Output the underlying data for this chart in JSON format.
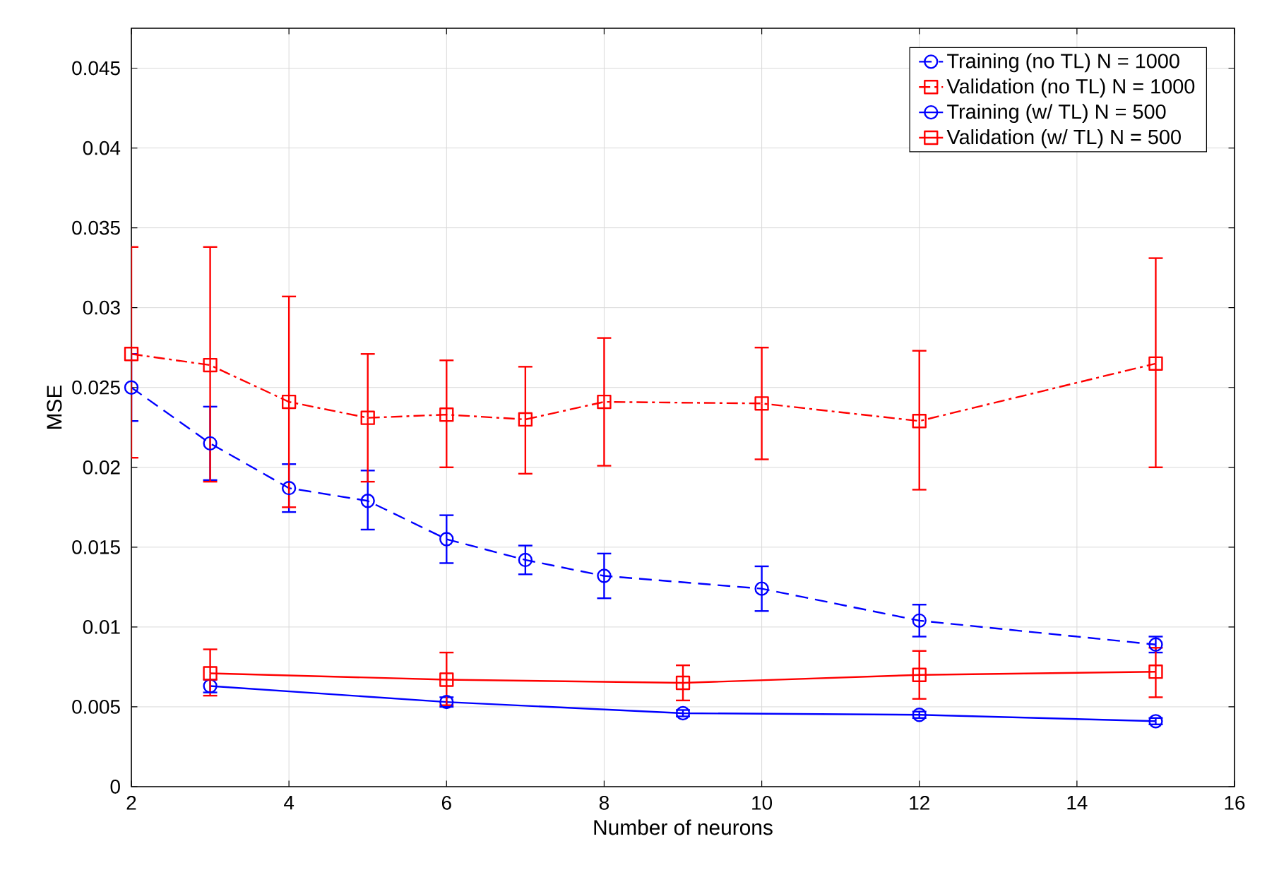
{
  "chart_data": {
    "type": "line",
    "xlabel": "Number of neurons",
    "ylabel": "MSE",
    "xlim": [
      2,
      16
    ],
    "xticks": [
      2,
      4,
      6,
      8,
      10,
      12,
      14,
      16
    ],
    "ylim": [
      0,
      0.0475
    ],
    "yticks": [
      0,
      0.005,
      0.01,
      0.015,
      0.02,
      0.025,
      0.03,
      0.035,
      0.04,
      0.045
    ],
    "grid": true,
    "legend": "top right",
    "series": [
      {
        "name": "Training (no TL) N = 1000",
        "color": "#0000ff",
        "marker": "circle",
        "line_style": "dashed",
        "x": [
          2,
          3,
          4,
          5,
          6,
          7,
          8,
          10,
          12,
          15
        ],
        "values": [
          0.025,
          0.0215,
          0.0187,
          0.0179,
          0.0155,
          0.0142,
          0.0132,
          0.0124,
          0.0104,
          0.0089
        ],
        "errors": [
          [
            0.0229,
            0.0271
          ],
          [
            0.0192,
            0.0238
          ],
          [
            0.0172,
            0.0202
          ],
          [
            0.0161,
            0.0198
          ],
          [
            0.014,
            0.017
          ],
          [
            0.0133,
            0.0151
          ],
          [
            0.0118,
            0.0146
          ],
          [
            0.011,
            0.0138
          ],
          [
            0.0094,
            0.0114
          ],
          [
            0.0084,
            0.0094
          ]
        ]
      },
      {
        "name": "Validation (no TL) N = 1000",
        "color": "#ff0000",
        "marker": "square",
        "line_style": "dashdot",
        "x": [
          2,
          3,
          4,
          5,
          6,
          7,
          8,
          10,
          12,
          15
        ],
        "values": [
          0.0271,
          0.0264,
          0.0241,
          0.0231,
          0.0233,
          0.023,
          0.0241,
          0.024,
          0.0229,
          0.0265
        ],
        "errors": [
          [
            0.0206,
            0.0338
          ],
          [
            0.0191,
            0.0338
          ],
          [
            0.0175,
            0.0307
          ],
          [
            0.0191,
            0.0271
          ],
          [
            0.02,
            0.0267
          ],
          [
            0.0196,
            0.0263
          ],
          [
            0.0201,
            0.0281
          ],
          [
            0.0205,
            0.0275
          ],
          [
            0.0186,
            0.0273
          ],
          [
            0.02,
            0.0331
          ]
        ]
      },
      {
        "name": "Training (w/ TL) N = 500",
        "color": "#0000ff",
        "marker": "circle",
        "line_style": "solid",
        "x": [
          3,
          6,
          9,
          12,
          15
        ],
        "values": [
          0.0063,
          0.0053,
          0.0046,
          0.0045,
          0.0041
        ],
        "errors": [
          [
            0.0059,
            0.0067
          ],
          [
            0.005,
            0.0056
          ],
          [
            0.0044,
            0.0048
          ],
          [
            0.0043,
            0.0047
          ],
          [
            0.0039,
            0.0043
          ]
        ]
      },
      {
        "name": "Validation (w/ TL) N = 500",
        "color": "#ff0000",
        "marker": "square",
        "line_style": "solid",
        "x": [
          3,
          6,
          9,
          12,
          15
        ],
        "values": [
          0.0071,
          0.0067,
          0.0065,
          0.007,
          0.0072
        ],
        "errors": [
          [
            0.0057,
            0.0086
          ],
          [
            0.0051,
            0.0084
          ],
          [
            0.0054,
            0.0076
          ],
          [
            0.0055,
            0.0085
          ],
          [
            0.0056,
            0.0087
          ]
        ]
      }
    ]
  }
}
